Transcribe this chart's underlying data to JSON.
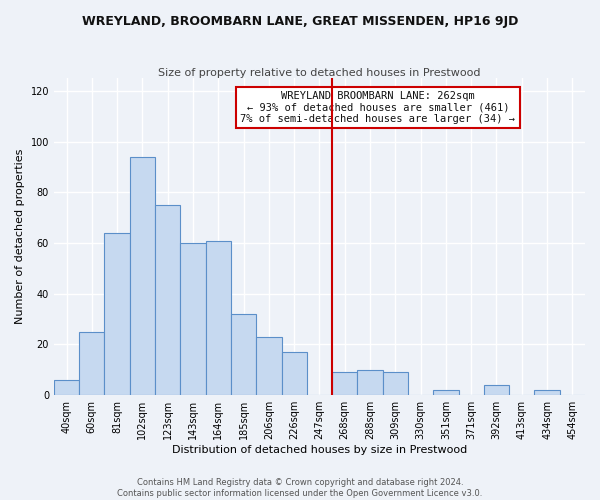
{
  "title": "WREYLAND, BROOMBARN LANE, GREAT MISSENDEN, HP16 9JD",
  "subtitle": "Size of property relative to detached houses in Prestwood",
  "xlabel": "Distribution of detached houses by size in Prestwood",
  "ylabel": "Number of detached properties",
  "bar_labels": [
    "40sqm",
    "60sqm",
    "81sqm",
    "102sqm",
    "123sqm",
    "143sqm",
    "164sqm",
    "185sqm",
    "206sqm",
    "226sqm",
    "247sqm",
    "268sqm",
    "288sqm",
    "309sqm",
    "330sqm",
    "351sqm",
    "371sqm",
    "392sqm",
    "413sqm",
    "434sqm",
    "454sqm"
  ],
  "bar_values": [
    6,
    25,
    64,
    94,
    75,
    60,
    61,
    32,
    23,
    17,
    0,
    9,
    10,
    9,
    0,
    2,
    0,
    4,
    0,
    2,
    0
  ],
  "bar_color": "#c6d9f0",
  "bar_edge_color": "#5b8fc9",
  "vline_x_index": 11,
  "vline_color": "#cc0000",
  "annotation_title": "WREYLAND BROOMBARN LANE: 262sqm",
  "annotation_line1": "← 93% of detached houses are smaller (461)",
  "annotation_line2": "7% of semi-detached houses are larger (34) →",
  "footer_line1": "Contains HM Land Registry data © Crown copyright and database right 2024.",
  "footer_line2": "Contains public sector information licensed under the Open Government Licence v3.0.",
  "ylim": [
    0,
    125
  ],
  "bg_color": "#eef2f8",
  "grid_color": "#ffffff",
  "title_fontsize": 9,
  "subtitle_fontsize": 8,
  "ylabel_fontsize": 8,
  "xlabel_fontsize": 8,
  "tick_fontsize": 7,
  "footer_fontsize": 6,
  "ann_fontsize": 7.5
}
